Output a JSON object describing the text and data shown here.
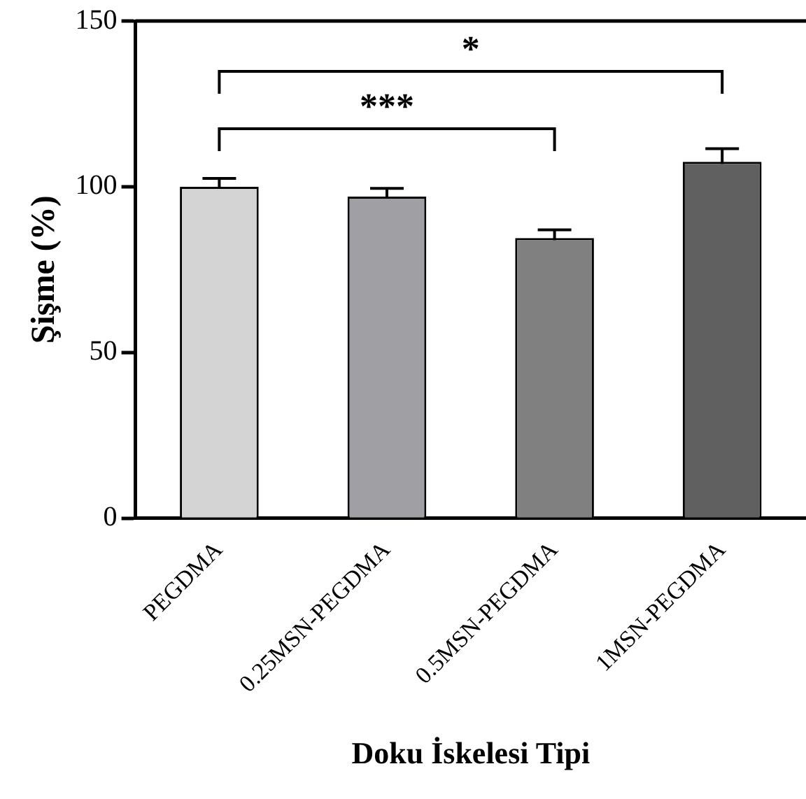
{
  "chart_data": {
    "type": "bar",
    "xlabel": "Doku İskelesi Tipi",
    "ylabel": "Şişme (%)",
    "categories": [
      "PEGDMA",
      "0.25MSN-PEGDMA",
      "0.5MSN-PEGDMA",
      "1MSN-PEGDMA"
    ],
    "values": [
      100,
      97,
      84.5,
      107.5
    ],
    "colors": [
      "#d4d4d4",
      "#a0a0a4",
      "#808080",
      "#606060"
    ],
    "errors": [
      2.5,
      2.5,
      2.5,
      4
    ],
    "ylim": [
      0,
      150
    ],
    "yticks": [
      0,
      50,
      100,
      150
    ],
    "grid": false,
    "legend": false,
    "annotations": [
      "***",
      "*"
    ]
  }
}
